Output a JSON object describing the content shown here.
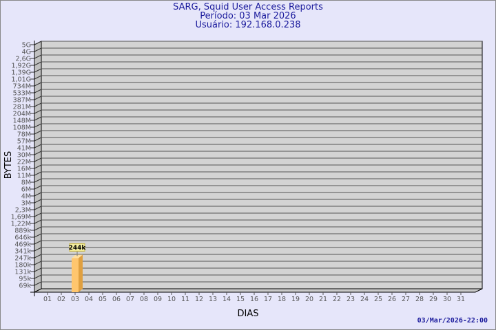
{
  "header": {
    "title": "SARG, Squid User Access Reports",
    "period": "Período: 03 Mar 2026",
    "user": "Usuário: 192.168.0.238"
  },
  "footer": {
    "timestamp": "03/Mar/2026-22:00"
  },
  "colors": {
    "background": "#e6e6fa",
    "plot": "#d3d3d3",
    "bar": "#ffc66e",
    "bar_side": "#e0a040",
    "title": "#1a1a9c"
  },
  "chart_data": {
    "type": "bar",
    "xlabel": "DIAS",
    "ylabel": "BYTES",
    "y_scale": "log-like labeled",
    "y_tick_labels": [
      "5G",
      "4G",
      "2,6G",
      "1,92G",
      "1,39G",
      "1,01G",
      "734M",
      "533M",
      "387M",
      "281M",
      "204M",
      "148M",
      "108M",
      "78M",
      "57M",
      "41M",
      "30M",
      "22M",
      "16M",
      "11M",
      "8M",
      "6M",
      "4M",
      "3M",
      "2,3M",
      "1,69M",
      "1,22M",
      "889k",
      "646k",
      "469k",
      "341k",
      "247k",
      "180k",
      "131k",
      "95k",
      "69k"
    ],
    "categories": [
      "01",
      "02",
      "03",
      "04",
      "05",
      "06",
      "07",
      "08",
      "09",
      "10",
      "11",
      "12",
      "13",
      "14",
      "15",
      "16",
      "17",
      "18",
      "19",
      "20",
      "21",
      "22",
      "23",
      "24",
      "25",
      "26",
      "27",
      "28",
      "29",
      "30",
      "31"
    ],
    "bars": [
      {
        "category": "03",
        "value": "244k",
        "label": "244k"
      }
    ],
    "grid": true
  }
}
